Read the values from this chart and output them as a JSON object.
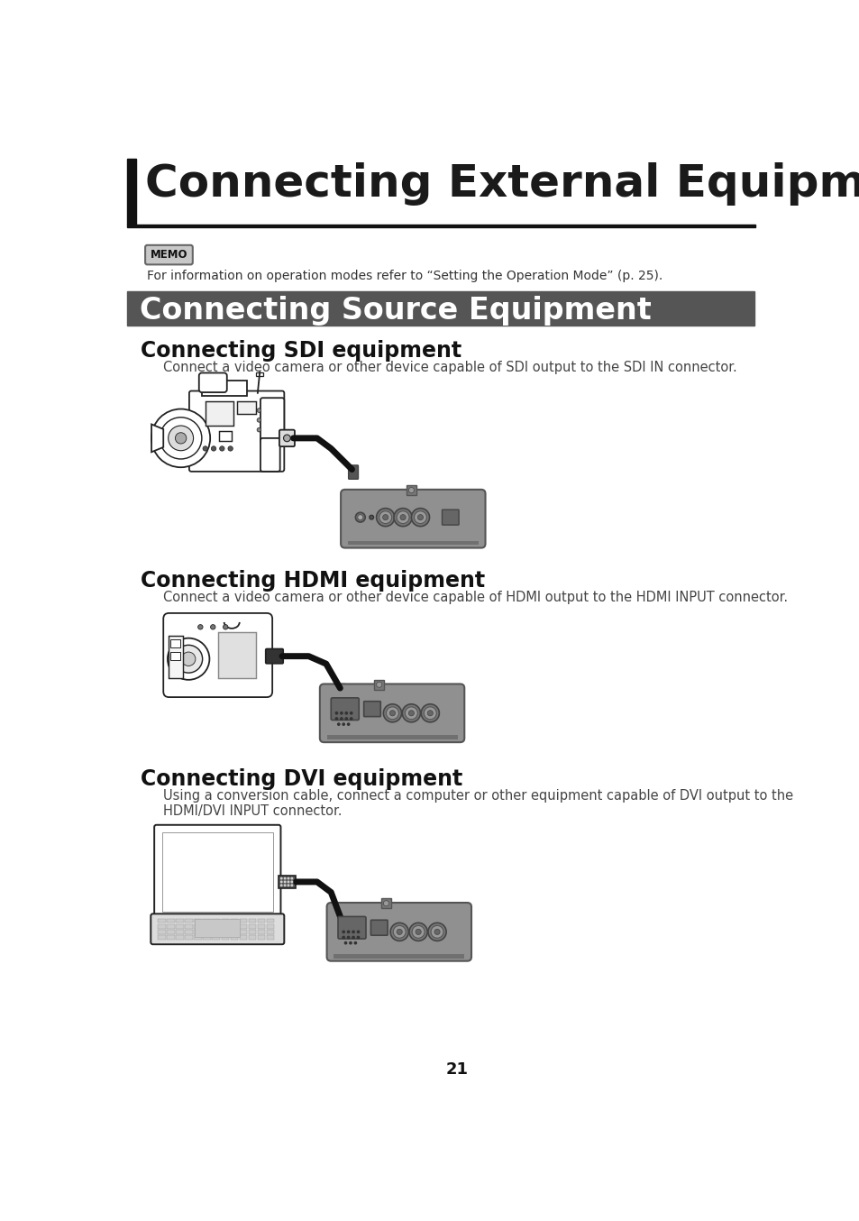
{
  "page_bg": "#ffffff",
  "title_text": "Connecting External Equipment",
  "title_text_color": "#1a1a1a",
  "title_font_size": 36,
  "section_bar_color": "#555555",
  "section_title": "Connecting Source Equipment",
  "section_title_color": "#ffffff",
  "section_font_size": 24,
  "memo_text": "MEMO",
  "memo_body": "For information on operation modes refer to “Setting the Operation Mode” (p. 25).",
  "sub_section1_title": "Connecting SDI equipment",
  "sub_section1_desc": "Connect a video camera or other device capable of SDI output to the SDI IN connector.",
  "sub_section2_title": "Connecting HDMI equipment",
  "sub_section2_desc": "Connect a video camera or other device capable of HDMI output to the HDMI INPUT connector.",
  "sub_section3_title": "Connecting DVI equipment",
  "sub_section3_desc": "Using a conversion cable, connect a computer or other equipment capable of DVI output to the\nHDMI/DVI INPUT connector.",
  "page_number": "21"
}
